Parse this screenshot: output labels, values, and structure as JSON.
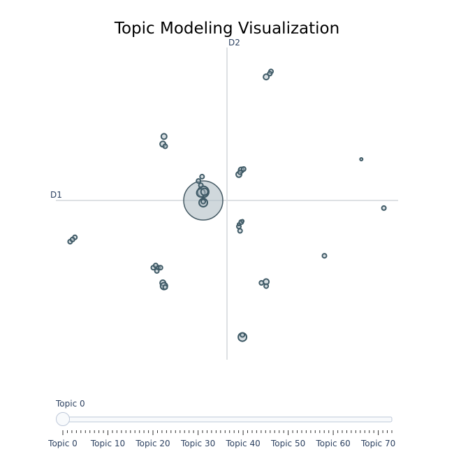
{
  "chart_data": {
    "type": "scatter",
    "title": "Topic Modeling Visualization",
    "xlabel": "D1",
    "ylabel": "D2",
    "xlim": [
      -7.2,
      7.2
    ],
    "ylim": [
      -7.2,
      7.2
    ],
    "grid": false,
    "points": [
      {
        "x": -1.0,
        "y": 0.0,
        "r": 28,
        "big": true
      },
      {
        "x": -1.0,
        "y": 0.4,
        "r": 8
      },
      {
        "x": -1.1,
        "y": 0.35,
        "r": 6
      },
      {
        "x": -1.0,
        "y": -0.1,
        "r": 6
      },
      {
        "x": -0.95,
        "y": 0.4,
        "r": 5
      },
      {
        "x": -1.1,
        "y": 0.7,
        "r": 3
      },
      {
        "x": -1.2,
        "y": 0.9,
        "r": 3
      },
      {
        "x": -1.05,
        "y": 1.1,
        "r": 3
      },
      {
        "x": -1.0,
        "y": -0.05,
        "r": 3
      },
      {
        "x": 1.65,
        "y": 5.7,
        "r": 4
      },
      {
        "x": 1.85,
        "y": 5.95,
        "r": 3
      },
      {
        "x": 1.8,
        "y": 5.85,
        "r": 3
      },
      {
        "x": -2.65,
        "y": 2.95,
        "r": 4
      },
      {
        "x": -2.7,
        "y": 2.6,
        "r": 4
      },
      {
        "x": -2.6,
        "y": 2.5,
        "r": 3
      },
      {
        "x": 0.6,
        "y": 1.4,
        "r": 4
      },
      {
        "x": 0.5,
        "y": 1.2,
        "r": 4
      },
      {
        "x": 0.7,
        "y": 1.45,
        "r": 3
      },
      {
        "x": 0.55,
        "y": 1.3,
        "r": 3
      },
      {
        "x": 5.65,
        "y": 1.9,
        "r": 2
      },
      {
        "x": 6.6,
        "y": -0.35,
        "r": 3
      },
      {
        "x": -6.6,
        "y": -1.9,
        "r": 3
      },
      {
        "x": -6.4,
        "y": -1.7,
        "r": 3
      },
      {
        "x": -6.5,
        "y": -1.8,
        "r": 3
      },
      {
        "x": 0.5,
        "y": -1.2,
        "r": 3
      },
      {
        "x": 0.55,
        "y": -1.4,
        "r": 3
      },
      {
        "x": 0.6,
        "y": -1.0,
        "r": 3
      },
      {
        "x": 0.65,
        "y": -0.95,
        "r": 2
      },
      {
        "x": 0.5,
        "y": -1.1,
        "r": 2
      },
      {
        "x": 4.1,
        "y": -2.55,
        "r": 3
      },
      {
        "x": -3.1,
        "y": -3.1,
        "r": 3
      },
      {
        "x": -2.9,
        "y": -3.1,
        "r": 3
      },
      {
        "x": -2.8,
        "y": -3.1,
        "r": 3
      },
      {
        "x": -3.0,
        "y": -3.0,
        "r": 3
      },
      {
        "x": -2.95,
        "y": -3.25,
        "r": 3
      },
      {
        "x": -2.7,
        "y": -3.8,
        "r": 4
      },
      {
        "x": -2.65,
        "y": -3.95,
        "r": 5
      },
      {
        "x": -2.6,
        "y": -4.0,
        "r": 3
      },
      {
        "x": 1.45,
        "y": -3.8,
        "r": 3
      },
      {
        "x": 1.65,
        "y": -3.75,
        "r": 4
      },
      {
        "x": 1.65,
        "y": -3.95,
        "r": 3
      },
      {
        "x": 0.65,
        "y": -6.3,
        "r": 6
      },
      {
        "x": 0.65,
        "y": -6.2,
        "r": 3
      }
    ]
  },
  "slider": {
    "current_label": "Topic 0",
    "value": 0,
    "min": 0,
    "max": 73,
    "tick_labels": [
      "Topic 0",
      "Topic 10",
      "Topic 20",
      "Topic 30",
      "Topic 40",
      "Topic 50",
      "Topic 60",
      "Topic 70"
    ],
    "tick_label_values": [
      0,
      10,
      20,
      30,
      40,
      50,
      60,
      70
    ]
  }
}
